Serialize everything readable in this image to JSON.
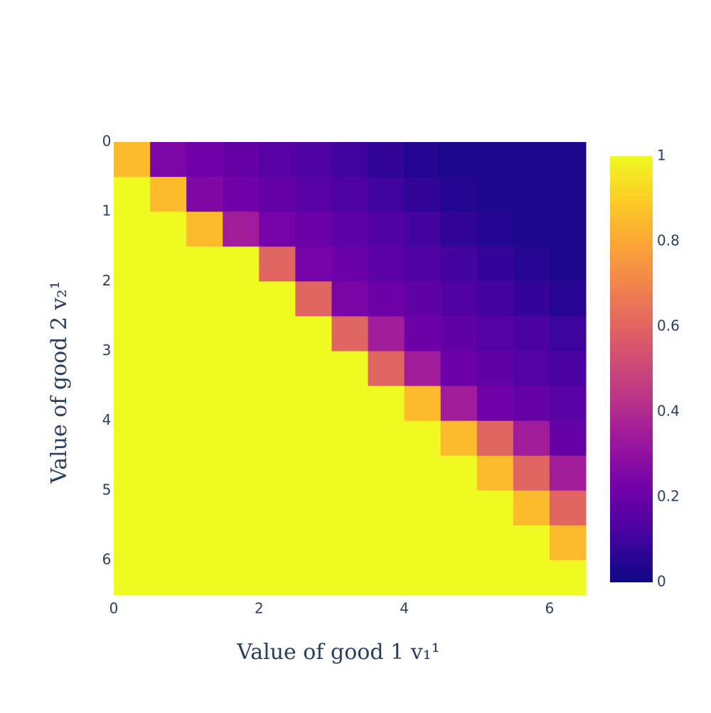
{
  "chart_data": {
    "type": "heatmap",
    "x_label": "Value of good 1 v₁¹",
    "y_label": "Value of good 2 v₂¹",
    "x": [
      0.25,
      0.75,
      1.25,
      1.75,
      2.25,
      2.75,
      3.25,
      3.75,
      4.25,
      4.75,
      5.25,
      5.75,
      6.25
    ],
    "y": [
      0.25,
      0.75,
      1.25,
      1.75,
      2.25,
      2.75,
      3.25,
      3.75,
      4.25,
      4.75,
      5.25,
      5.75,
      6.25
    ],
    "z": [
      [
        0.85,
        0.25,
        0.22,
        0.19,
        0.16,
        0.13,
        0.1,
        0.07,
        0.04,
        0.03,
        0.03,
        0.03,
        0.03
      ],
      [
        1,
        0.85,
        0.26,
        0.22,
        0.19,
        0.16,
        0.13,
        0.1,
        0.07,
        0.04,
        0.03,
        0.03,
        0.03
      ],
      [
        1,
        1,
        0.85,
        0.35,
        0.23,
        0.2,
        0.17,
        0.14,
        0.11,
        0.07,
        0.04,
        0.03,
        0.03
      ],
      [
        1,
        1,
        1,
        1,
        0.6,
        0.23,
        0.2,
        0.17,
        0.14,
        0.11,
        0.08,
        0.05,
        0.03
      ],
      [
        1,
        1,
        1,
        1,
        1,
        0.6,
        0.24,
        0.21,
        0.18,
        0.14,
        0.11,
        0.08,
        0.05
      ],
      [
        1,
        1,
        1,
        1,
        1,
        1,
        0.6,
        0.35,
        0.21,
        0.18,
        0.15,
        0.12,
        0.09
      ],
      [
        1,
        1,
        1,
        1,
        1,
        1,
        1,
        0.6,
        0.35,
        0.21,
        0.18,
        0.15,
        0.12
      ],
      [
        1,
        1,
        1,
        1,
        1,
        1,
        1,
        1,
        0.85,
        0.35,
        0.22,
        0.19,
        0.16
      ],
      [
        1,
        1,
        1,
        1,
        1,
        1,
        1,
        1,
        1,
        0.85,
        0.6,
        0.35,
        0.19
      ],
      [
        1,
        1,
        1,
        1,
        1,
        1,
        1,
        1,
        1,
        1,
        0.85,
        0.6,
        0.35
      ],
      [
        1,
        1,
        1,
        1,
        1,
        1,
        1,
        1,
        1,
        1,
        1,
        0.85,
        0.6
      ],
      [
        1,
        1,
        1,
        1,
        1,
        1,
        1,
        1,
        1,
        1,
        1,
        1,
        0.85
      ],
      [
        1,
        1,
        1,
        1,
        1,
        1,
        1,
        1,
        1,
        1,
        1,
        1,
        1
      ]
    ],
    "xlim": [
      0,
      6.5
    ],
    "xticks": [
      0,
      2,
      4,
      6
    ],
    "ylim": [
      0,
      6.5
    ],
    "yticks": [
      0,
      1,
      2,
      3,
      4,
      5,
      6
    ],
    "y_reversed": true,
    "zlim": [
      0,
      1
    ],
    "colorbar_ticks": [
      0,
      0.2,
      0.4,
      0.6,
      0.8,
      1
    ],
    "colorscale": [
      [
        0,
        "#0d0887"
      ],
      [
        0.111,
        "#46039f"
      ],
      [
        0.222,
        "#7201a8"
      ],
      [
        0.333,
        "#9c179e"
      ],
      [
        0.444,
        "#bd3786"
      ],
      [
        0.556,
        "#d8576b"
      ],
      [
        0.667,
        "#ed7953"
      ],
      [
        0.778,
        "#fb9f3a"
      ],
      [
        0.889,
        "#fdca26"
      ],
      [
        1,
        "#f0f921"
      ]
    ]
  }
}
